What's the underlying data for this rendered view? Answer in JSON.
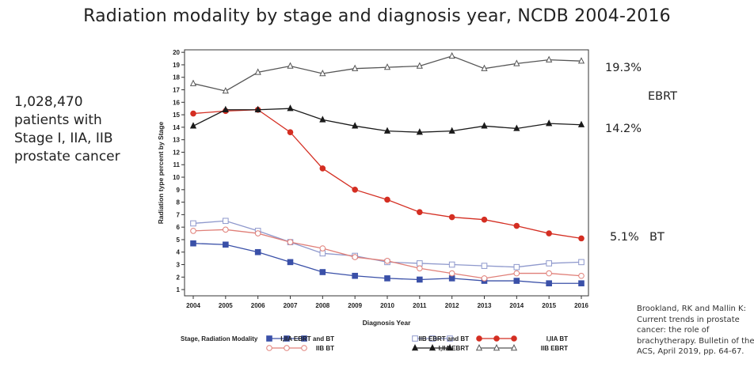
{
  "slide": {
    "title": "Radiation modality by stage and diagnosis year, NCDB 2004-2016",
    "side_note": [
      "1,028,470",
      "patients with",
      "Stage I, IIA, IIB",
      "prostate cancer"
    ],
    "callouts": {
      "ebrt_top": "19.3%",
      "ebrt_label": "EBRT",
      "ebrt_bottom": "14.2%",
      "bt_value": "5.1%",
      "bt_label": "BT"
    },
    "citation": [
      "Brookland, RK and Mallin K:",
      "Current trends in prostate",
      "cancer: the role of",
      "brachytherapy. Bulletin of the",
      "ACS, April 2019, pp. 64-67."
    ]
  },
  "chart_data": {
    "type": "line",
    "title": "",
    "xlabel": "Diagnosis Year",
    "ylabel": "Radiation type percent by Stage",
    "x": [
      2004,
      2005,
      2006,
      2007,
      2008,
      2009,
      2010,
      2011,
      2012,
      2013,
      2014,
      2015,
      2016
    ],
    "xlim": [
      2004,
      2016
    ],
    "ylim": [
      0.5,
      20.2
    ],
    "yticks": [
      1,
      2,
      3,
      4,
      5,
      6,
      7,
      8,
      9,
      10,
      11,
      12,
      13,
      14,
      15,
      16,
      17,
      18,
      19,
      20
    ],
    "grid": false,
    "legend_title": "Stage, Radiation Modality",
    "legend_placement": "bottom",
    "series": [
      {
        "name": "I,IIA EBRT and BT",
        "color": "#3a50a8",
        "marker": "square-filled",
        "values": [
          4.7,
          4.6,
          4.0,
          3.2,
          2.4,
          2.1,
          1.9,
          1.8,
          1.9,
          1.7,
          1.7,
          1.5,
          1.5
        ]
      },
      {
        "name": "IIB EBRT and BT",
        "color": "#8e98cc",
        "marker": "square-open",
        "values": [
          6.3,
          6.5,
          5.7,
          4.8,
          3.9,
          3.7,
          3.2,
          3.1,
          3.0,
          2.9,
          2.8,
          3.1,
          3.2
        ]
      },
      {
        "name": "I,IIA BT",
        "color": "#d42e22",
        "marker": "circle-filled",
        "values": [
          15.1,
          15.3,
          15.4,
          13.6,
          10.7,
          9.0,
          8.2,
          7.2,
          6.8,
          6.6,
          6.1,
          5.5,
          5.1
        ]
      },
      {
        "name": "IIB BT",
        "color": "#e07f78",
        "marker": "circle-open",
        "values": [
          5.7,
          5.8,
          5.5,
          4.8,
          4.3,
          3.6,
          3.3,
          2.7,
          2.3,
          1.9,
          2.3,
          2.3,
          2.1
        ]
      },
      {
        "name": "I,IIA EBRT",
        "color": "#1a1a1a",
        "marker": "triangle-filled",
        "values": [
          14.1,
          15.4,
          15.4,
          15.5,
          14.6,
          14.1,
          13.7,
          13.6,
          13.7,
          14.1,
          13.9,
          14.3,
          14.2
        ]
      },
      {
        "name": "IIB EBRT",
        "color": "#555555",
        "marker": "triangle-open",
        "values": [
          17.5,
          16.9,
          18.4,
          18.9,
          18.3,
          18.7,
          18.8,
          18.9,
          19.7,
          18.7,
          19.1,
          19.4,
          19.3
        ]
      }
    ]
  }
}
